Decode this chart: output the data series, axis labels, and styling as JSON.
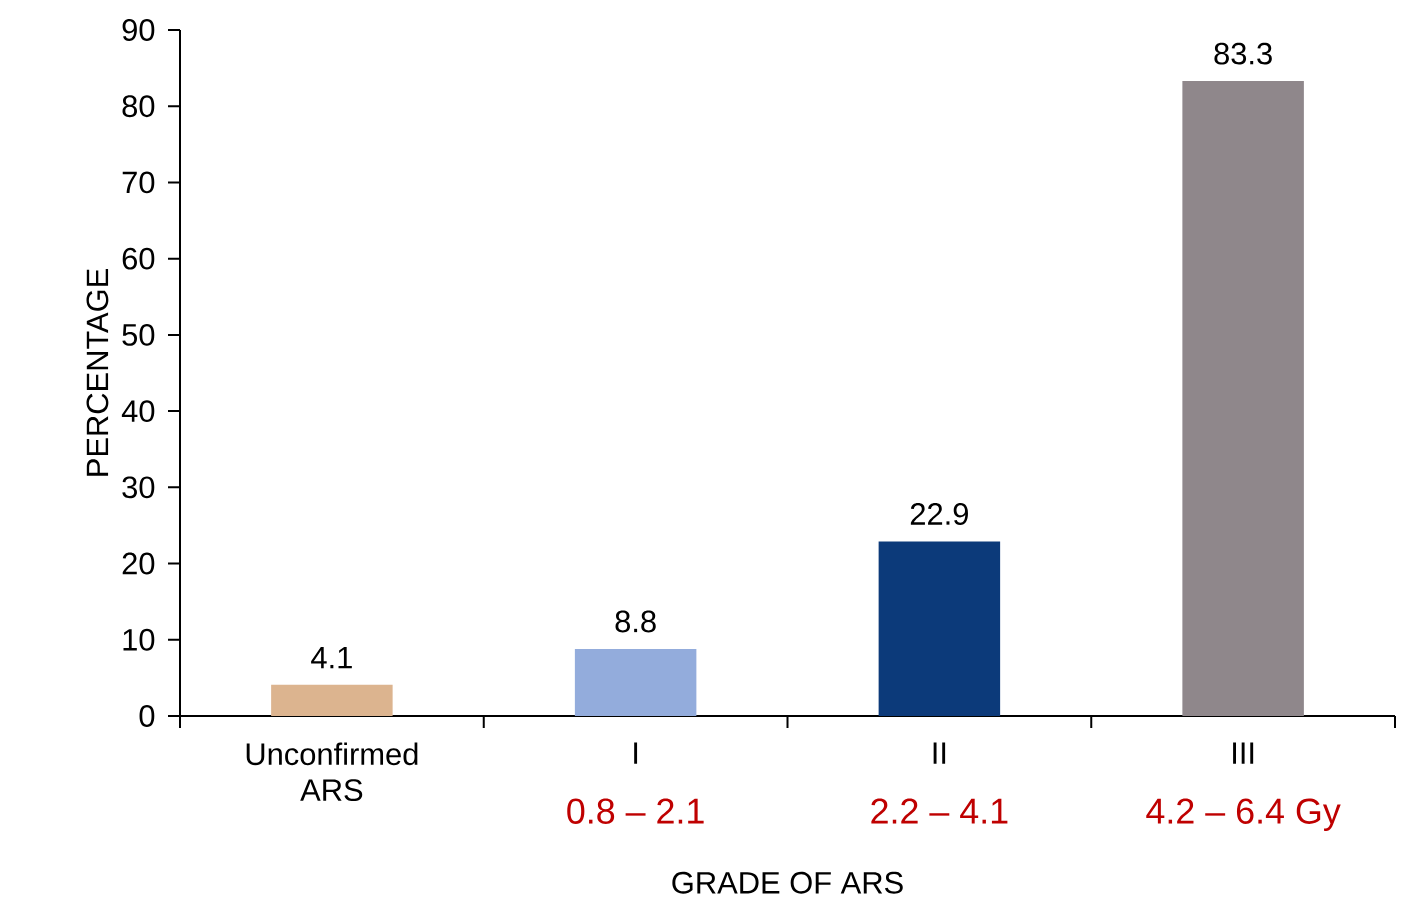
{
  "chart_data": {
    "type": "bar",
    "categories": [
      "Unconfirmed ARS",
      "I",
      "II",
      "III"
    ],
    "values": [
      4.1,
      8.8,
      22.9,
      83.3
    ],
    "colors": [
      "#dcb48f",
      "#93acdc",
      "#0c3a7a",
      "#8f878b"
    ],
    "xlabel": "GRADE OF ARS",
    "ylabel": "PERCENTAGE",
    "ylim": [
      0,
      90
    ],
    "yticks": [
      0,
      10,
      20,
      30,
      40,
      50,
      60,
      70,
      80,
      90
    ],
    "data_labels": true,
    "annotations": [
      "0.8 – 2.1",
      "2.2 – 4.1",
      "4.2 – 6.4 Gy"
    ]
  }
}
